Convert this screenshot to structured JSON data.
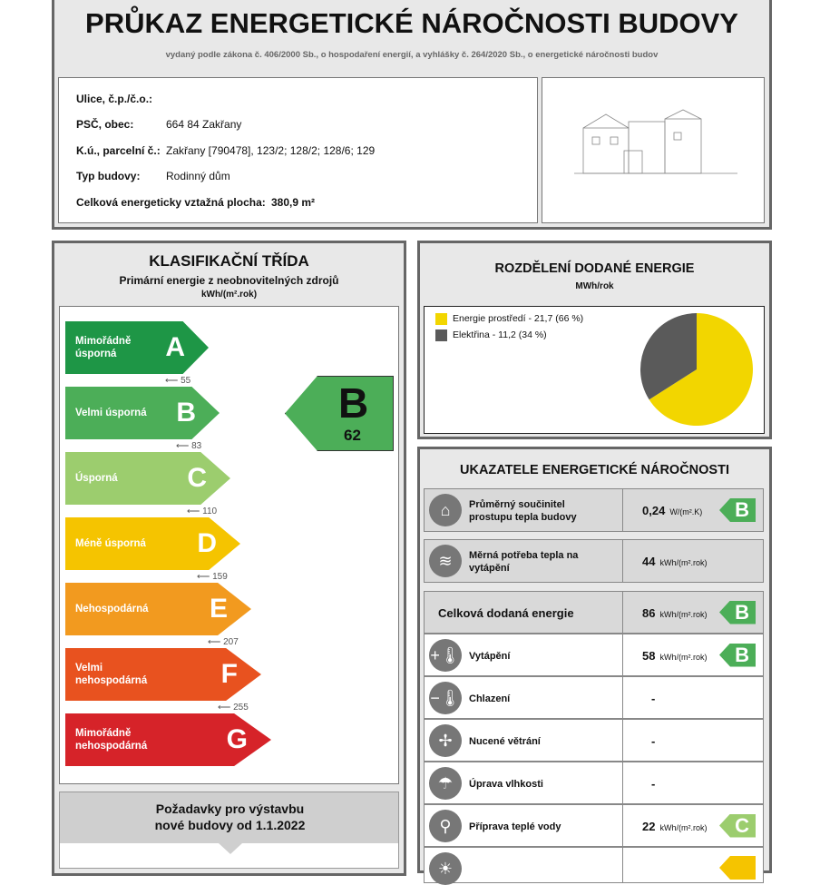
{
  "header": {
    "title": "PRŮKAZ ENERGETICKÉ NÁROČNOSTI BUDOVY",
    "subtitle": "vydaný podle zákona č. 406/2000 Sb., o hospodaření energií, a vyhlášky č. 264/2020 Sb., o energetické náročnosti budov"
  },
  "info": {
    "street_label": "Ulice, č.p./č.o.:",
    "street_value": "",
    "city_label": "PSČ, obec:",
    "city_value": "664 84 Zakřany",
    "parcel_label": "K.ú., parcelní č.:",
    "parcel_value": "Zakřany [790478], 123/2; 128/2; 128/6; 129",
    "type_label": "Typ budovy:",
    "type_value": "Rodinný dům",
    "area_label": "Celková energeticky vztažná plocha:",
    "area_value": "380,9 m²"
  },
  "classification": {
    "title": "KLASIFIKAČNÍ TŘÍDA",
    "subtitle": "Primární energie z neobnovitelných zdrojů",
    "unit": "kWh/(m².rok)",
    "classes": [
      {
        "letter": "A",
        "name": "Mimořádně úsporná",
        "color": "#1e9646"
      },
      {
        "letter": "B",
        "name": "Velmi úsporná",
        "color": "#4cae58"
      },
      {
        "letter": "C",
        "name": "Úsporná",
        "color": "#9ccd6e"
      },
      {
        "letter": "D",
        "name": "Méně úsporná",
        "color": "#f5c400"
      },
      {
        "letter": "E",
        "name": "Nehospodárná",
        "color": "#f29a1f"
      },
      {
        "letter": "F",
        "name": "Velmi nehospodárná",
        "color": "#e8521f"
      },
      {
        "letter": "G",
        "name": "Mimořádně nehospodárná",
        "color": "#d62329"
      }
    ],
    "thresholds": [
      "55",
      "83",
      "110",
      "159",
      "207",
      "255"
    ],
    "result": {
      "letter": "B",
      "value": "62"
    }
  },
  "requirements": {
    "title": "Požadavky pro výstavbu nové budovy od 1.1.2022"
  },
  "distribution": {
    "title": "ROZDĚLENÍ DODANÉ ENERGIE",
    "unit": "MWh/rok",
    "legend": [
      {
        "label": "Energie prostředí - 21,7 (66 %)",
        "color": "#f2d600",
        "value": 21.7,
        "percent": 66
      },
      {
        "label": "Elektřina - 11,2 (34 %)",
        "color": "#5a5a5a",
        "value": 11.2,
        "percent": 34
      }
    ]
  },
  "indicators": {
    "title": "UKAZATELE ENERGETICKÉ NÁROČNOSTI",
    "rows": [
      {
        "icon": "house-icon",
        "label": "Průměrný součinitel prostupu tepla budovy",
        "value": "0,24",
        "unit": "W/(m².K)",
        "class": "B"
      },
      {
        "icon": "heat-need-icon",
        "label": "Měrná potřeba tepla na vytápění",
        "value": "44",
        "unit": "kWh/(m².rok)",
        "class": ""
      },
      {
        "icon": "",
        "label": "Celková dodaná energie",
        "value": "86",
        "unit": "kWh/(m².rok)",
        "class": "B"
      },
      {
        "icon": "heating-thermometer-icon",
        "label": "Vytápění",
        "value": "58",
        "unit": "kWh/(m².rok)",
        "class": "B"
      },
      {
        "icon": "cooling-thermometer-icon",
        "label": "Chlazení",
        "value": "-",
        "unit": "",
        "class": ""
      },
      {
        "icon": "fan-icon",
        "label": "Nucené větrání",
        "value": "-",
        "unit": "",
        "class": ""
      },
      {
        "icon": "humidity-icon",
        "label": "Úprava vlhkosti",
        "value": "-",
        "unit": "",
        "class": ""
      },
      {
        "icon": "water-tap-icon",
        "label": "Příprava teplé vody",
        "value": "22",
        "unit": "kWh/(m².rok)",
        "class": "C"
      }
    ]
  }
}
